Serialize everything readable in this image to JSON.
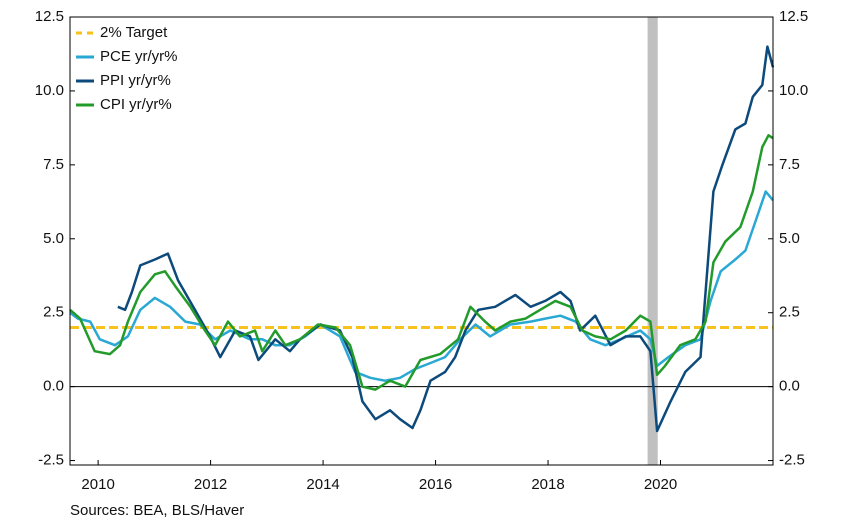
{
  "chart_data": {
    "type": "line",
    "source": "Sources:  BEA, BLS/Haver",
    "xlim": [
      2010,
      2022.5
    ],
    "xticks": [
      {
        "value": 2010.5,
        "label": "2010"
      },
      {
        "value": 2012.5,
        "label": "2012"
      },
      {
        "value": 2014.5,
        "label": "2014"
      },
      {
        "value": 2016.5,
        "label": "2016"
      },
      {
        "value": 2018.5,
        "label": "2018"
      },
      {
        "value": 2020.5,
        "label": "2020"
      }
    ],
    "ylim": [
      -2.65,
      12.5
    ],
    "yticks": [
      12.5,
      {
        "value": 10,
        "label": "10.0"
      },
      7.5,
      {
        "value": 5,
        "label": "5.0"
      },
      2.5,
      {
        "value": 0,
        "label": "0.0"
      },
      -2.5
    ],
    "y2lim": [
      -2.65,
      12.5
    ],
    "y2ticks": [
      12.5,
      {
        "value": 10,
        "label": "10.0"
      },
      7.5,
      {
        "value": 5,
        "label": "5.0"
      },
      2.5,
      {
        "value": 0,
        "label": "0.0"
      },
      -2.5
    ],
    "shaded_regions": [
      [
        2020.27,
        2020.45
      ]
    ],
    "shade_color": "#c0c0c0",
    "legend": "upper left",
    "target": {
      "name": "2% Target",
      "value": 2,
      "color": "#f7c21c"
    },
    "series": [
      {
        "name": "PCE yr/yr%",
        "color": "#2aa8d4",
        "x": [
          2010.0,
          2010.14,
          2010.36,
          2010.53,
          2010.8,
          2011.03,
          2011.25,
          2011.51,
          2011.78,
          2012.05,
          2012.31,
          2012.58,
          2012.85,
          2013.2,
          2013.42,
          2013.65,
          2013.91,
          2014.18,
          2014.45,
          2014.8,
          2015.07,
          2015.34,
          2015.6,
          2015.87,
          2016.14,
          2016.41,
          2016.67,
          2016.94,
          2017.21,
          2017.47,
          2017.83,
          2018.19,
          2018.45,
          2018.72,
          2018.99,
          2019.25,
          2019.52,
          2019.79,
          2020.14,
          2020.32,
          2020.44,
          2020.64,
          2020.94,
          2021.21,
          2021.39,
          2021.57,
          2021.83,
          2022.01,
          2022.19,
          2022.37,
          2022.5
        ],
        "values": [
          2.5,
          2.3,
          2.2,
          1.6,
          1.4,
          1.7,
          2.6,
          3.0,
          2.7,
          2.2,
          2.1,
          1.6,
          1.9,
          1.6,
          1.6,
          1.4,
          1.4,
          1.7,
          2.1,
          1.7,
          0.5,
          0.3,
          0.2,
          0.3,
          0.6,
          0.8,
          1.0,
          1.6,
          2.1,
          1.7,
          2.1,
          2.2,
          2.3,
          2.4,
          2.2,
          1.6,
          1.4,
          1.6,
          1.9,
          1.6,
          0.7,
          1.0,
          1.4,
          1.6,
          2.9,
          3.9,
          4.3,
          4.6,
          5.6,
          6.6,
          6.3
        ]
      },
      {
        "name": "PPI yr/yr%",
        "color": "#0d4a7c",
        "x": [
          2010.85,
          2010.98,
          2011.1,
          2011.25,
          2011.51,
          2011.74,
          2011.92,
          2012.22,
          2012.49,
          2012.67,
          2012.94,
          2013.2,
          2013.35,
          2013.65,
          2013.91,
          2014.09,
          2014.45,
          2014.8,
          2015.02,
          2015.2,
          2015.43,
          2015.69,
          2015.87,
          2016.09,
          2016.23,
          2016.41,
          2016.67,
          2016.85,
          2017.03,
          2017.26,
          2017.56,
          2017.92,
          2018.19,
          2018.45,
          2018.72,
          2018.9,
          2019.07,
          2019.34,
          2019.61,
          2019.88,
          2020.14,
          2020.32,
          2020.44,
          2020.68,
          2020.94,
          2021.21,
          2021.44,
          2021.6,
          2021.83,
          2022.01,
          2022.14,
          2022.31,
          2022.4,
          2022.5
        ],
        "values": [
          2.7,
          2.6,
          3.2,
          4.1,
          4.3,
          4.5,
          3.6,
          2.6,
          1.7,
          1.0,
          1.9,
          1.7,
          0.9,
          1.6,
          1.2,
          1.6,
          2.1,
          1.9,
          1.0,
          -0.5,
          -1.1,
          -0.8,
          -1.1,
          -1.4,
          -0.8,
          0.2,
          0.5,
          1.0,
          1.9,
          2.6,
          2.7,
          3.1,
          2.7,
          2.9,
          3.2,
          2.9,
          1.9,
          2.4,
          1.4,
          1.7,
          1.7,
          1.2,
          -1.5,
          -0.5,
          0.5,
          1.0,
          6.6,
          7.5,
          8.7,
          8.9,
          9.8,
          10.2,
          11.5,
          10.8
        ]
      },
      {
        "name": "CPI yr/yr%",
        "color": "#239b2a",
        "x": [
          2010.0,
          2010.18,
          2010.44,
          2010.71,
          2010.89,
          2011.03,
          2011.25,
          2011.51,
          2011.69,
          2011.87,
          2012.14,
          2012.4,
          2012.58,
          2012.81,
          2013.02,
          2013.29,
          2013.42,
          2013.65,
          2013.83,
          2014.09,
          2014.41,
          2014.72,
          2014.98,
          2015.2,
          2015.43,
          2015.69,
          2015.96,
          2016.23,
          2016.58,
          2016.9,
          2017.12,
          2017.38,
          2017.56,
          2017.83,
          2018.1,
          2018.36,
          2018.63,
          2018.9,
          2019.11,
          2019.34,
          2019.61,
          2019.88,
          2020.14,
          2020.32,
          2020.44,
          2020.58,
          2020.85,
          2021.12,
          2021.3,
          2021.44,
          2021.65,
          2021.92,
          2022.14,
          2022.31,
          2022.42,
          2022.5
        ],
        "values": [
          2.6,
          2.3,
          1.2,
          1.1,
          1.4,
          2.2,
          3.2,
          3.8,
          3.9,
          3.4,
          2.7,
          1.9,
          1.4,
          2.2,
          1.7,
          1.9,
          1.2,
          1.9,
          1.4,
          1.6,
          2.1,
          2.0,
          1.4,
          0.0,
          -0.1,
          0.2,
          0.0,
          0.9,
          1.1,
          1.6,
          2.7,
          2.2,
          1.9,
          2.2,
          2.3,
          2.6,
          2.9,
          2.7,
          1.9,
          1.7,
          1.6,
          1.9,
          2.4,
          2.2,
          0.4,
          0.7,
          1.4,
          1.6,
          2.2,
          4.2,
          4.9,
          5.4,
          6.6,
          8.1,
          8.5,
          8.4
        ]
      }
    ]
  }
}
